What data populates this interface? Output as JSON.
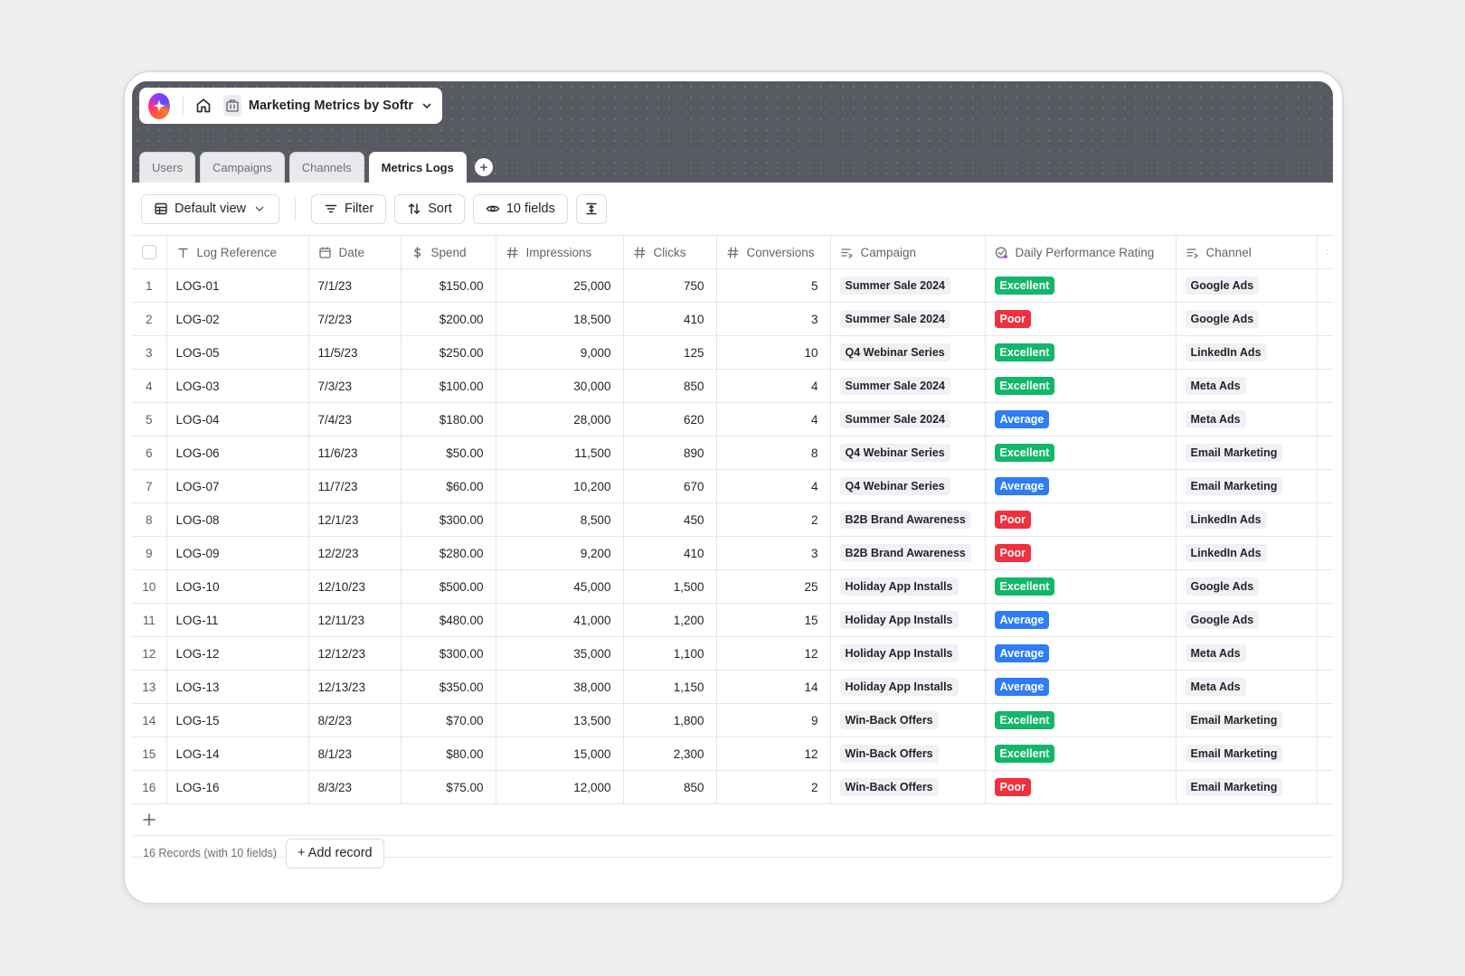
{
  "app": {
    "title": "Marketing Metrics by Softr"
  },
  "tabs": [
    {
      "label": "Users",
      "active": false
    },
    {
      "label": "Campaigns",
      "active": false
    },
    {
      "label": "Channels",
      "active": false
    },
    {
      "label": "Metrics Logs",
      "active": true
    }
  ],
  "toolbar": {
    "view_label": "Default view",
    "filter_label": "Filter",
    "sort_label": "Sort",
    "fields_label": "10 fields"
  },
  "columns": [
    {
      "label": "Log Reference",
      "icon": "text-type-icon"
    },
    {
      "label": "Date",
      "icon": "calendar-icon"
    },
    {
      "label": "Spend",
      "icon": "dollar-icon"
    },
    {
      "label": "Impressions",
      "icon": "hash-icon"
    },
    {
      "label": "Clicks",
      "icon": "hash-icon"
    },
    {
      "label": "Conversions",
      "icon": "hash-icon"
    },
    {
      "label": "Campaign",
      "icon": "linked-record-icon"
    },
    {
      "label": "Daily Performance Rating",
      "icon": "rating-select-icon"
    },
    {
      "label": "Channel",
      "icon": "linked-record-icon"
    }
  ],
  "rating_colors": {
    "Excellent": "#12b76a",
    "Poor": "#f0303f",
    "Average": "#2e7cf6"
  },
  "rows": [
    {
      "n": "1",
      "ref": "LOG-01",
      "date": "7/1/23",
      "spend": "$150.00",
      "impressions": "25,000",
      "clicks": "750",
      "conversions": "5",
      "campaign": "Summer Sale 2024",
      "rating": "Excellent",
      "channel": "Google Ads"
    },
    {
      "n": "2",
      "ref": "LOG-02",
      "date": "7/2/23",
      "spend": "$200.00",
      "impressions": "18,500",
      "clicks": "410",
      "conversions": "3",
      "campaign": "Summer Sale 2024",
      "rating": "Poor",
      "channel": "Google Ads"
    },
    {
      "n": "3",
      "ref": "LOG-05",
      "date": "11/5/23",
      "spend": "$250.00",
      "impressions": "9,000",
      "clicks": "125",
      "conversions": "10",
      "campaign": "Q4 Webinar Series",
      "rating": "Excellent",
      "channel": "LinkedIn Ads"
    },
    {
      "n": "4",
      "ref": "LOG-03",
      "date": "7/3/23",
      "spend": "$100.00",
      "impressions": "30,000",
      "clicks": "850",
      "conversions": "4",
      "campaign": "Summer Sale 2024",
      "rating": "Excellent",
      "channel": "Meta Ads"
    },
    {
      "n": "5",
      "ref": "LOG-04",
      "date": "7/4/23",
      "spend": "$180.00",
      "impressions": "28,000",
      "clicks": "620",
      "conversions": "4",
      "campaign": "Summer Sale 2024",
      "rating": "Average",
      "channel": "Meta Ads"
    },
    {
      "n": "6",
      "ref": "LOG-06",
      "date": "11/6/23",
      "spend": "$50.00",
      "impressions": "11,500",
      "clicks": "890",
      "conversions": "8",
      "campaign": "Q4 Webinar Series",
      "rating": "Excellent",
      "channel": "Email Marketing"
    },
    {
      "n": "7",
      "ref": "LOG-07",
      "date": "11/7/23",
      "spend": "$60.00",
      "impressions": "10,200",
      "clicks": "670",
      "conversions": "4",
      "campaign": "Q4 Webinar Series",
      "rating": "Average",
      "channel": "Email Marketing"
    },
    {
      "n": "8",
      "ref": "LOG-08",
      "date": "12/1/23",
      "spend": "$300.00",
      "impressions": "8,500",
      "clicks": "450",
      "conversions": "2",
      "campaign": "B2B Brand Awareness",
      "rating": "Poor",
      "channel": "LinkedIn Ads"
    },
    {
      "n": "9",
      "ref": "LOG-09",
      "date": "12/2/23",
      "spend": "$280.00",
      "impressions": "9,200",
      "clicks": "410",
      "conversions": "3",
      "campaign": "B2B Brand Awareness",
      "rating": "Poor",
      "channel": "LinkedIn Ads"
    },
    {
      "n": "10",
      "ref": "LOG-10",
      "date": "12/10/23",
      "spend": "$500.00",
      "impressions": "45,000",
      "clicks": "1,500",
      "conversions": "25",
      "campaign": "Holiday App Installs",
      "rating": "Excellent",
      "channel": "Google Ads"
    },
    {
      "n": "11",
      "ref": "LOG-11",
      "date": "12/11/23",
      "spend": "$480.00",
      "impressions": "41,000",
      "clicks": "1,200",
      "conversions": "15",
      "campaign": "Holiday App Installs",
      "rating": "Average",
      "channel": "Google Ads"
    },
    {
      "n": "12",
      "ref": "LOG-12",
      "date": "12/12/23",
      "spend": "$300.00",
      "impressions": "35,000",
      "clicks": "1,100",
      "conversions": "12",
      "campaign": "Holiday App Installs",
      "rating": "Average",
      "channel": "Meta Ads"
    },
    {
      "n": "13",
      "ref": "LOG-13",
      "date": "12/13/23",
      "spend": "$350.00",
      "impressions": "38,000",
      "clicks": "1,150",
      "conversions": "14",
      "campaign": "Holiday App Installs",
      "rating": "Average",
      "channel": "Meta Ads"
    },
    {
      "n": "14",
      "ref": "LOG-15",
      "date": "8/2/23",
      "spend": "$70.00",
      "impressions": "13,500",
      "clicks": "1,800",
      "conversions": "9",
      "campaign": "Win-Back Offers",
      "rating": "Excellent",
      "channel": "Email Marketing"
    },
    {
      "n": "15",
      "ref": "LOG-14",
      "date": "8/1/23",
      "spend": "$80.00",
      "impressions": "15,000",
      "clicks": "2,300",
      "conversions": "12",
      "campaign": "Win-Back Offers",
      "rating": "Excellent",
      "channel": "Email Marketing"
    },
    {
      "n": "16",
      "ref": "LOG-16",
      "date": "8/3/23",
      "spend": "$75.00",
      "impressions": "12,000",
      "clicks": "850",
      "conversions": "2",
      "campaign": "Win-Back Offers",
      "rating": "Poor",
      "channel": "Email Marketing"
    }
  ],
  "footer": {
    "records_count": "16 Records (with 10 fields)",
    "add_record_label": "+ Add record"
  }
}
